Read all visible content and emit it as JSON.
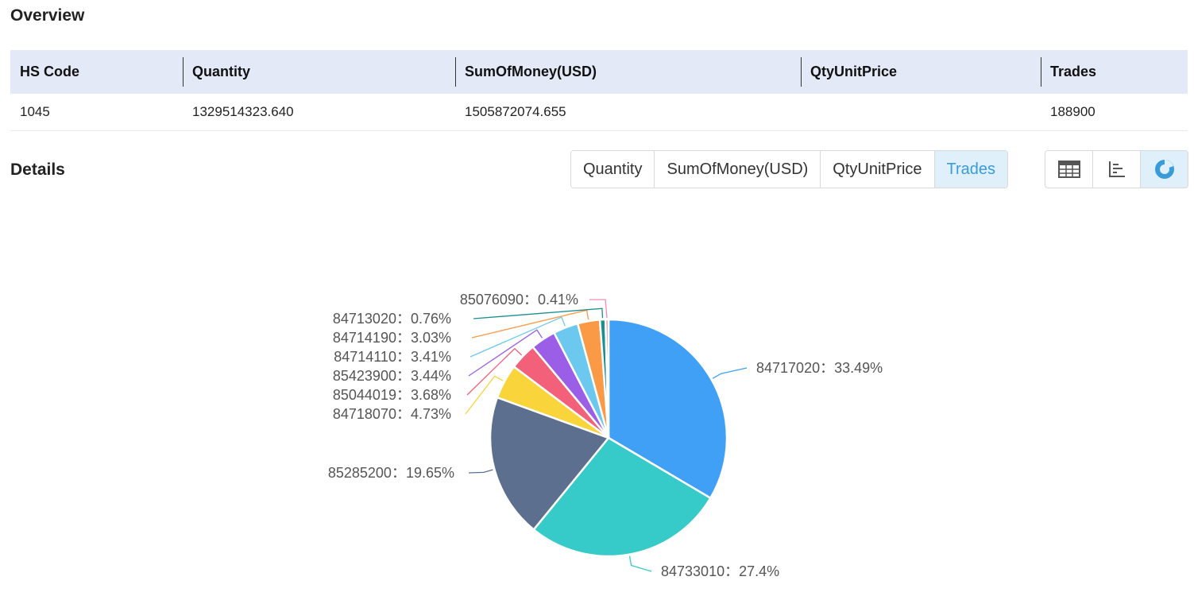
{
  "overview": {
    "title": "Overview",
    "columns": [
      "HS Code",
      "Quantity",
      "SumOfMoney(USD)",
      "QtyUnitPrice",
      "Trades"
    ],
    "row": [
      "1045",
      "1329514323.640",
      "1505872074.655",
      "",
      "188900"
    ]
  },
  "details": {
    "title": "Details",
    "tabs": [
      "Quantity",
      "SumOfMoney(USD)",
      "QtyUnitPrice",
      "Trades"
    ],
    "active_tab": "Trades",
    "view_buttons": [
      "table-view-icon",
      "bar-chart-view-icon",
      "pie-chart-view-icon"
    ],
    "active_view": "pie-chart-view-icon"
  },
  "colors": {
    "accent": "#3a9bd9",
    "header_bg": "#e4e9f7",
    "active_bg": "#dff0fa"
  },
  "chart_data": {
    "type": "pie",
    "title": "",
    "label_separator": "：",
    "slices": [
      {
        "label": "84717020",
        "value": 33.49,
        "display": "33.49%",
        "color": "#3fa0f5"
      },
      {
        "label": "84733010",
        "value": 27.4,
        "display": "27.4%",
        "color": "#36cbc9"
      },
      {
        "label": "85285200",
        "value": 19.65,
        "display": "19.65%",
        "color": "#5d6f8f"
      },
      {
        "label": "84718070",
        "value": 4.73,
        "display": "4.73%",
        "color": "#f9d43b"
      },
      {
        "label": "85044019",
        "value": 3.68,
        "display": "3.68%",
        "color": "#f2607a"
      },
      {
        "label": "85423900",
        "value": 3.44,
        "display": "3.44%",
        "color": "#9a5fe6"
      },
      {
        "label": "84714110",
        "value": 3.41,
        "display": "3.41%",
        "color": "#6cc8ee"
      },
      {
        "label": "84714190",
        "value": 3.03,
        "display": "3.03%",
        "color": "#fb9a46"
      },
      {
        "label": "84713020",
        "value": 0.76,
        "display": "0.76%",
        "color": "#1a8f8f"
      },
      {
        "label": "85076090",
        "value": 0.41,
        "display": "0.41%",
        "color": "#f58ab8"
      }
    ]
  }
}
